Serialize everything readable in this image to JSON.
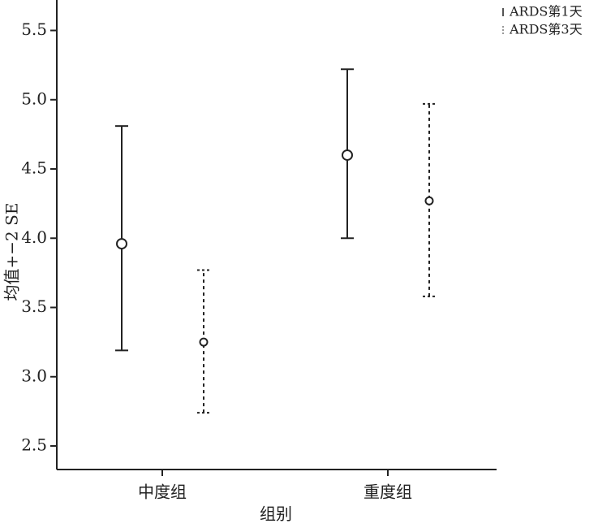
{
  "chart_data": {
    "type": "errorbar",
    "x_label": "组别",
    "y_label": "均值+−2 SE",
    "categories": [
      "中度组",
      "重度组"
    ],
    "series": [
      {
        "name": "ARDS第1天",
        "color": "#222222",
        "line_style": "solid",
        "values": [
          3.96,
          4.6
        ],
        "lower": [
          3.19,
          4.0
        ],
        "upper": [
          4.81,
          5.22
        ]
      },
      {
        "name": "ARDS第3天",
        "color": "#222222",
        "line_style": "dotted",
        "values": [
          3.25,
          4.27
        ],
        "lower": [
          2.74,
          3.58
        ],
        "upper": [
          3.77,
          4.97
        ]
      }
    ],
    "ylim": [
      2.33,
      5.72
    ],
    "yticks": [
      2.5,
      {
        "value": 3,
        "label": "3.0"
      },
      3.5,
      {
        "value": 4,
        "label": "4.0"
      },
      4.5,
      {
        "value": 5,
        "label": "5.0"
      },
      5.5
    ],
    "legend": "top-right"
  }
}
